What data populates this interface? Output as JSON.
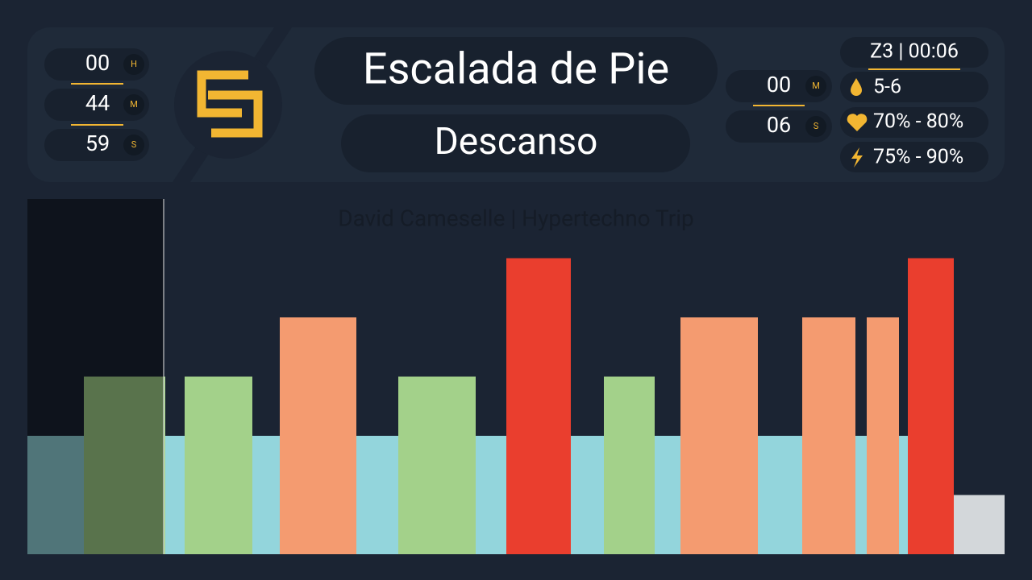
{
  "timer_left": {
    "hours": "00",
    "hours_unit": "H",
    "minutes": "44",
    "minutes_unit": "M",
    "seconds": "59",
    "seconds_unit": "S"
  },
  "header": {
    "title": "Escalada de Pie",
    "subtitle": "Descanso"
  },
  "timer_right": {
    "minutes": "00",
    "minutes_unit": "M",
    "seconds": "06",
    "seconds_unit": "S"
  },
  "zone_info": {
    "zone": "Z3 | 00:06",
    "cadence": "5-6",
    "heart_rate": "70% - 80%",
    "power": "75% - 90%"
  },
  "chart_data": {
    "type": "bar",
    "title": "David Cameselle | Hypertechno Trip",
    "x_start": [
      0,
      70,
      171,
      195,
      279,
      313,
      408,
      460,
      556,
      594,
      674,
      715,
      778,
      810,
      906,
      961,
      1027,
      1041,
      1081,
      1092,
      1149
    ],
    "x_end": [
      70,
      171,
      195,
      279,
      313,
      408,
      460,
      556,
      594,
      674,
      715,
      778,
      810,
      906,
      961,
      1027,
      1041,
      1081,
      1092,
      1149,
      1212
    ],
    "values": [
      2,
      3,
      2,
      3,
      2,
      4,
      2,
      3,
      2,
      5,
      2,
      3,
      2,
      4,
      2,
      4,
      2,
      4,
      2,
      5,
      1
    ],
    "zone_colors": {
      "1": "#d3d7da",
      "2": "#93d5dc",
      "3": "#a3d18a",
      "4": "#f49b70",
      "5": "#ea3e2e"
    },
    "xlim": [
      0,
      1212
    ],
    "ylim": [
      0,
      6
    ],
    "progress": 169
  }
}
